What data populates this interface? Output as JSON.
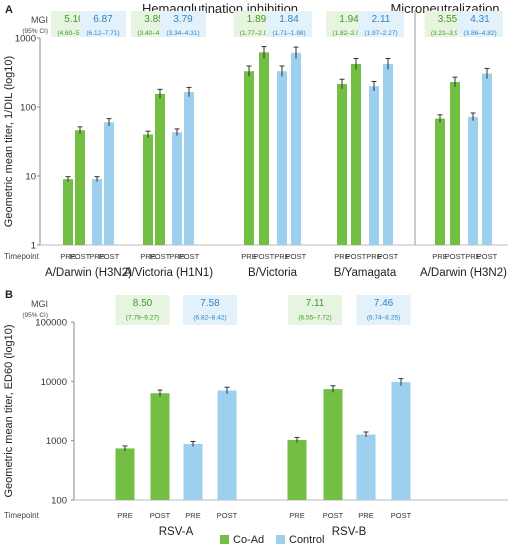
{
  "colors": {
    "co_ad": "#72BF44",
    "control": "#9DCFEE",
    "co_ad_box": "#E7F4DF",
    "control_box": "#E3F1FB",
    "co_ad_text": "#3F9A2C",
    "control_text": "#2E84C9"
  },
  "legend": {
    "co_ad": "Co-Ad",
    "control": "Control"
  },
  "labels": {
    "mgi": "MGI",
    "ci": "(95% CI)",
    "timepoint": "Timepoint",
    "pre": "PRE",
    "post": "POST"
  },
  "chart_data": [
    {
      "panel": "A",
      "type": "bar",
      "ylabel": "Geometric mean titer, 1/DIL (log10)",
      "yscale": "log",
      "ylim": [
        1,
        1000
      ],
      "yticks": [
        "1",
        "10",
        "100",
        "1000"
      ],
      "section_titles": [
        "Hemagglutination inhibition",
        "Microneutralization"
      ],
      "groups": [
        {
          "name": "A/Darwin (H3N2)",
          "series": [
            {
              "series": "Co-Ad",
              "pre": 9,
              "post": 46,
              "mgi": "5.10",
              "ci": "(4.60–5.66)"
            },
            {
              "series": "Control",
              "pre": 9,
              "post": 60,
              "mgi": "6.87",
              "ci": "(6.12–7.71)"
            }
          ]
        },
        {
          "name": "A/Victoria (H1N1)",
          "series": [
            {
              "series": "Co-Ad",
              "pre": 40,
              "post": 155,
              "mgi": "3.85",
              "ci": "(3.40–4.35)"
            },
            {
              "series": "Control",
              "pre": 43,
              "post": 165,
              "mgi": "3.79",
              "ci": "(3.34–4.31)"
            }
          ]
        },
        {
          "name": "B/Victoria",
          "series": [
            {
              "series": "Co-Ad",
              "pre": 330,
              "post": 620,
              "mgi": "1.89",
              "ci": "(1.77–2.03)"
            },
            {
              "series": "Control",
              "pre": 330,
              "post": 610,
              "mgi": "1.84",
              "ci": "(1.71–1.98)"
            }
          ]
        },
        {
          "name": "B/Yamagata",
          "series": [
            {
              "series": "Co-Ad",
              "pre": 215,
              "post": 420,
              "mgi": "1.94",
              "ci": "(1.82–2.07)"
            },
            {
              "series": "Control",
              "pre": 200,
              "post": 420,
              "mgi": "2.11",
              "ci": "(1.97–2.27)"
            }
          ]
        },
        {
          "name": "A/Darwin (H3N2)",
          "series": [
            {
              "series": "Co-Ad",
              "pre": 68,
              "post": 230,
              "mgi": "3.55",
              "ci": "(3.21–3.92)"
            },
            {
              "series": "Control",
              "pre": 72,
              "post": 305,
              "mgi": "4.31",
              "ci": "(3.86–4.82)"
            }
          ]
        }
      ]
    },
    {
      "panel": "B",
      "type": "bar",
      "ylabel": "Geometric mean titer, ED60 (log10)",
      "yscale": "log",
      "ylim": [
        100,
        100000
      ],
      "yticks": [
        "100",
        "1000",
        "10000",
        "100000"
      ],
      "groups": [
        {
          "name": "RSV-A",
          "series": [
            {
              "series": "Co-Ad",
              "pre": 740,
              "post": 6300,
              "mgi": "8.50",
              "ci": "(7.79–9.27)"
            },
            {
              "series": "Control",
              "pre": 880,
              "post": 7000,
              "mgi": "7.58",
              "ci": "(6.82–8.42)"
            }
          ]
        },
        {
          "name": "RSV-B",
          "series": [
            {
              "series": "Co-Ad",
              "pre": 1030,
              "post": 7400,
              "mgi": "7.11",
              "ci": "(6.55–7.72)"
            },
            {
              "series": "Control",
              "pre": 1270,
              "post": 9700,
              "mgi": "7.46",
              "ci": "(6.74–8.25)"
            }
          ]
        }
      ]
    }
  ]
}
